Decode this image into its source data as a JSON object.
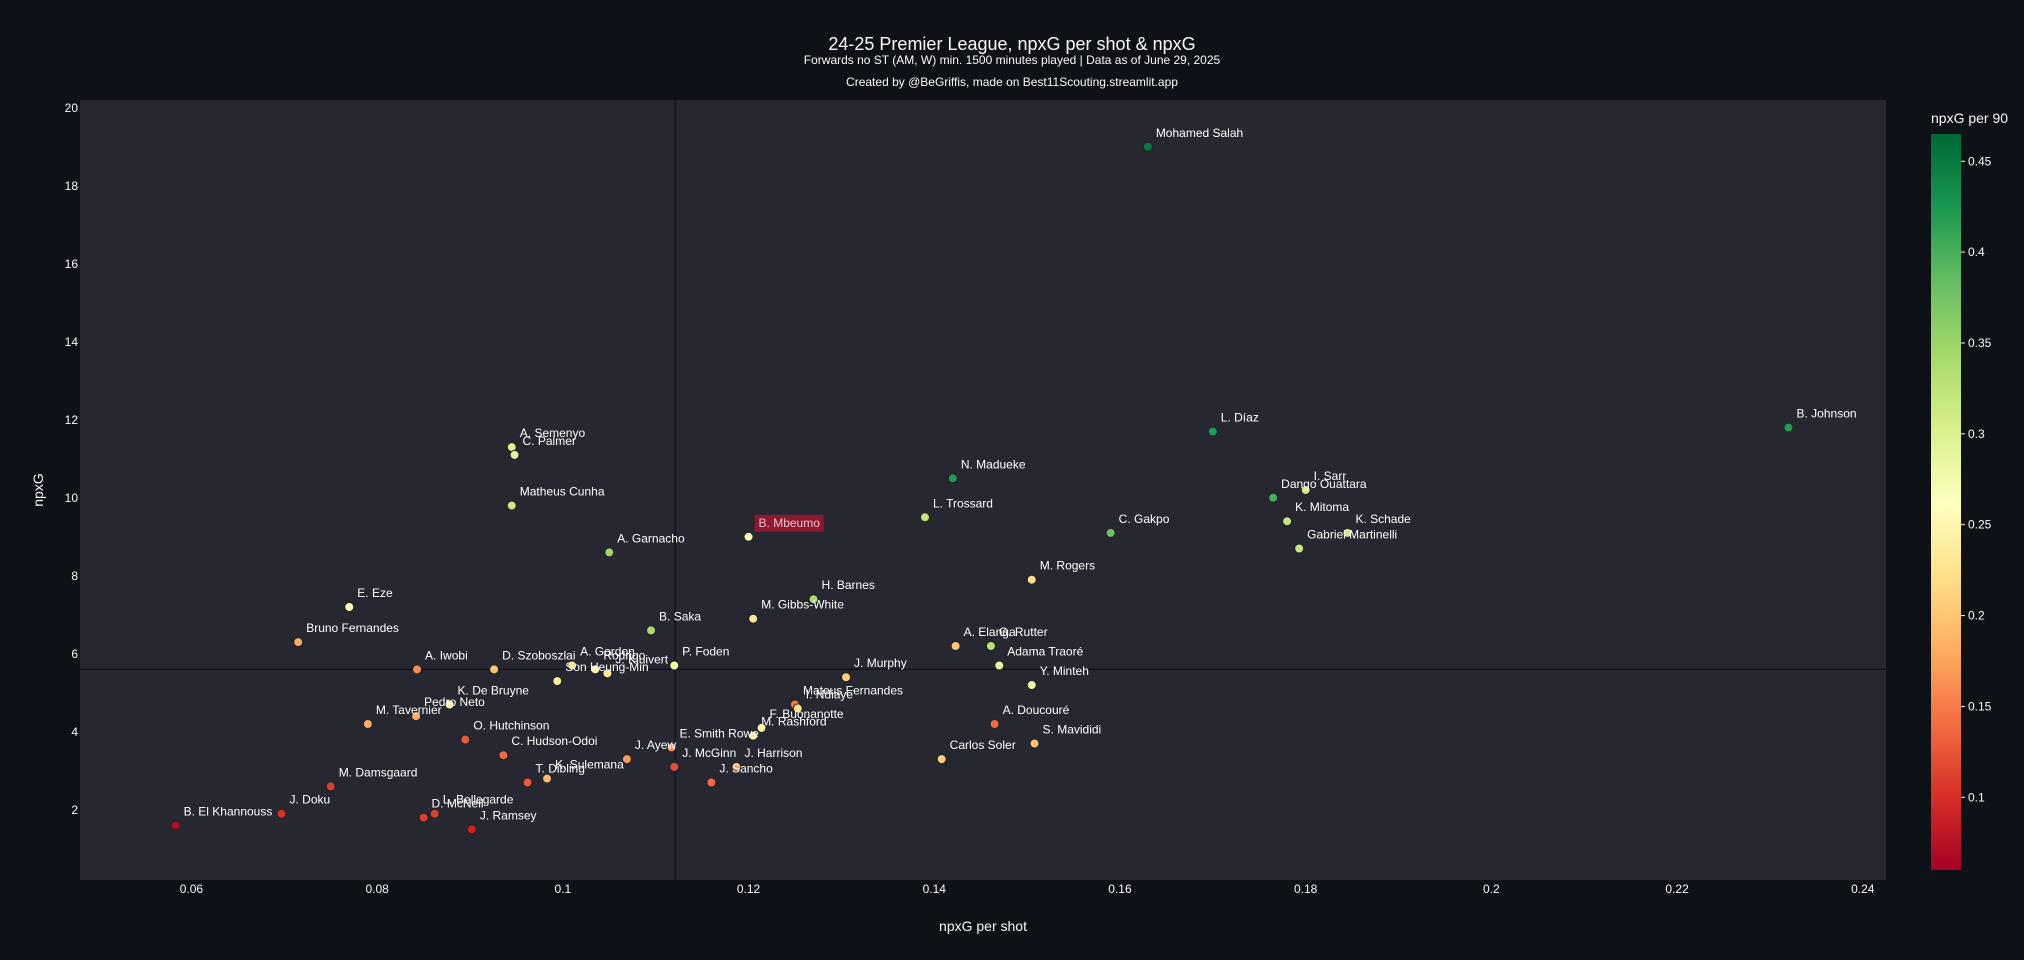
{
  "chart_data": {
    "type": "scatter",
    "title": "24-25 Premier League, npxG per shot & npxG",
    "subtitle": "Forwards no ST (AM, W) min. 1500 minutes played | Data as of June 29, 2025",
    "credit": "Created by @BeGriffis, made on Best11Scouting.streamlit.app",
    "xlabel": "npxG per shot",
    "ylabel": "npxG",
    "xlim": [
      0.048,
      0.2425
    ],
    "ylim": [
      0.2,
      20.2
    ],
    "xticks": [
      0.06,
      0.08,
      0.1,
      0.12,
      0.14,
      0.16,
      0.18,
      0.2,
      0.22,
      0.24
    ],
    "xtick_labels": [
      "0.06",
      "0.08",
      "0.1",
      "0.12",
      "0.14",
      "0.16",
      "0.18",
      "0.2",
      "0.22",
      "0.24"
    ],
    "yticks": [
      2,
      4,
      6,
      8,
      10,
      12,
      14,
      16,
      18,
      20
    ],
    "ytick_labels": [
      "2",
      "4",
      "6",
      "8",
      "10",
      "12",
      "14",
      "16",
      "18",
      "20"
    ],
    "reference_lines": {
      "x": 0.1121,
      "y": 5.6
    },
    "grid": false,
    "colorbar": {
      "title": "npxG per 90",
      "range": [
        0.06,
        0.465
      ],
      "ticks": [
        0.1,
        0.15,
        0.2,
        0.25,
        0.3,
        0.35,
        0.4,
        0.45
      ],
      "tick_labels": [
        "0.1",
        "0.15",
        "0.2",
        "0.25",
        "0.3",
        "0.35",
        "0.4",
        "0.45"
      ],
      "colorscale": "RdYlGn"
    },
    "highlight": "B. Mbeumo",
    "points": [
      {
        "name": "Mohamed Salah",
        "x": 0.163,
        "y": 19.0,
        "c": 0.45
      },
      {
        "name": "B. Johnson",
        "x": 0.232,
        "y": 11.8,
        "c": 0.42
      },
      {
        "name": "L. Díaz",
        "x": 0.17,
        "y": 11.7,
        "c": 0.42
      },
      {
        "name": "N. Madueke",
        "x": 0.142,
        "y": 10.5,
        "c": 0.42
      },
      {
        "name": "A. Semenyo",
        "x": 0.0945,
        "y": 11.3,
        "c": 0.3
      },
      {
        "name": "C. Palmer",
        "x": 0.0948,
        "y": 11.1,
        "c": 0.29
      },
      {
        "name": "Matheus Cunha",
        "x": 0.0945,
        "y": 9.8,
        "c": 0.31
      },
      {
        "name": "I. Sarr",
        "x": 0.18,
        "y": 10.2,
        "c": 0.31
      },
      {
        "name": "Dango Ouattara",
        "x": 0.1765,
        "y": 10.0,
        "c": 0.4
      },
      {
        "name": "L. Trossard",
        "x": 0.139,
        "y": 9.5,
        "c": 0.32
      },
      {
        "name": "B. Mbeumo",
        "x": 0.12,
        "y": 9.0,
        "c": 0.26
      },
      {
        "name": "C. Gakpo",
        "x": 0.159,
        "y": 9.1,
        "c": 0.38
      },
      {
        "name": "K. Mitoma",
        "x": 0.178,
        "y": 9.4,
        "c": 0.32
      },
      {
        "name": "K. Schade",
        "x": 0.1845,
        "y": 9.1,
        "c": 0.31
      },
      {
        "name": "Gabriel Martinelli",
        "x": 0.1793,
        "y": 8.7,
        "c": 0.32
      },
      {
        "name": "A. Garnacho",
        "x": 0.105,
        "y": 8.6,
        "c": 0.35
      },
      {
        "name": "M. Rogers",
        "x": 0.1505,
        "y": 7.9,
        "c": 0.22
      },
      {
        "name": "H. Barnes",
        "x": 0.127,
        "y": 7.4,
        "c": 0.34
      },
      {
        "name": "E. Eze",
        "x": 0.077,
        "y": 7.2,
        "c": 0.26
      },
      {
        "name": "M. Gibbs-White",
        "x": 0.1205,
        "y": 6.9,
        "c": 0.23
      },
      {
        "name": "B. Saka",
        "x": 0.1095,
        "y": 6.6,
        "c": 0.34
      },
      {
        "name": "Bruno Fernandes",
        "x": 0.0715,
        "y": 6.3,
        "c": 0.18
      },
      {
        "name": "A. Elanga",
        "x": 0.1423,
        "y": 6.2,
        "c": 0.2
      },
      {
        "name": "G. Rutter",
        "x": 0.1461,
        "y": 6.2,
        "c": 0.33
      },
      {
        "name": "Adama Traoré",
        "x": 0.147,
        "y": 5.7,
        "c": 0.28
      },
      {
        "name": "A. Iwobi",
        "x": 0.0843,
        "y": 5.6,
        "c": 0.16
      },
      {
        "name": "D. Szoboszlai",
        "x": 0.0926,
        "y": 5.6,
        "c": 0.2
      },
      {
        "name": "A. Gordon",
        "x": 0.101,
        "y": 5.7,
        "c": 0.22
      },
      {
        "name": "Rodrigo",
        "x": 0.1035,
        "y": 5.6,
        "c": 0.25
      },
      {
        "name": "J. Kluivert",
        "x": 0.1048,
        "y": 5.5,
        "c": 0.24
      },
      {
        "name": "P. Foden",
        "x": 0.112,
        "y": 5.7,
        "c": 0.28
      },
      {
        "name": "Son Heung-Min",
        "x": 0.0994,
        "y": 5.3,
        "c": 0.24
      },
      {
        "name": "J. Murphy",
        "x": 0.1305,
        "y": 5.4,
        "c": 0.21
      },
      {
        "name": "Y. Minteh",
        "x": 0.1505,
        "y": 5.2,
        "c": 0.28
      },
      {
        "name": "K. De Bruyne",
        "x": 0.0878,
        "y": 4.7,
        "c": 0.25
      },
      {
        "name": "Pedro Neto",
        "x": 0.0842,
        "y": 4.4,
        "c": 0.18
      },
      {
        "name": "Mateus Fernandes",
        "x": 0.125,
        "y": 4.7,
        "c": 0.15
      },
      {
        "name": "I. Ndiaye",
        "x": 0.1253,
        "y": 4.6,
        "c": 0.22
      },
      {
        "name": "M. Tavernier",
        "x": 0.079,
        "y": 4.2,
        "c": 0.18
      },
      {
        "name": "F. Buonanotte",
        "x": 0.1214,
        "y": 4.1,
        "c": 0.25
      },
      {
        "name": "M. Rashford",
        "x": 0.1205,
        "y": 3.9,
        "c": 0.24
      },
      {
        "name": "A. Doucouré",
        "x": 0.1465,
        "y": 4.2,
        "c": 0.14
      },
      {
        "name": "S. Mavididi",
        "x": 0.1508,
        "y": 3.7,
        "c": 0.2
      },
      {
        "name": "O. Hutchinson",
        "x": 0.0895,
        "y": 3.8,
        "c": 0.13
      },
      {
        "name": "E. Smith Rowe",
        "x": 0.1117,
        "y": 3.6,
        "c": 0.16
      },
      {
        "name": "C. Hudson-Odoi",
        "x": 0.0936,
        "y": 3.4,
        "c": 0.14
      },
      {
        "name": "J. Ayew",
        "x": 0.1069,
        "y": 3.3,
        "c": 0.17
      },
      {
        "name": "J. McGinn",
        "x": 0.112,
        "y": 3.1,
        "c": 0.12
      },
      {
        "name": "J. Harrison",
        "x": 0.1187,
        "y": 3.1,
        "c": 0.17
      },
      {
        "name": "Carlos Soler",
        "x": 0.1408,
        "y": 3.3,
        "c": 0.21
      },
      {
        "name": "J. Sancho",
        "x": 0.116,
        "y": 2.7,
        "c": 0.14
      },
      {
        "name": "K. Sulemana",
        "x": 0.0983,
        "y": 2.8,
        "c": 0.19
      },
      {
        "name": "T. Dibling",
        "x": 0.0962,
        "y": 2.7,
        "c": 0.13
      },
      {
        "name": "M. Damsgaard",
        "x": 0.075,
        "y": 2.6,
        "c": 0.11
      },
      {
        "name": "B. El Khannouss",
        "x": 0.0583,
        "y": 1.6,
        "c": 0.07
      },
      {
        "name": "J. Doku",
        "x": 0.0697,
        "y": 1.9,
        "c": 0.1
      },
      {
        "name": "D. McNeil",
        "x": 0.085,
        "y": 1.8,
        "c": 0.11
      },
      {
        "name": "L. Bellegarde",
        "x": 0.0862,
        "y": 1.9,
        "c": 0.11
      },
      {
        "name": "J. Ramsey",
        "x": 0.0902,
        "y": 1.5,
        "c": 0.09
      }
    ]
  }
}
